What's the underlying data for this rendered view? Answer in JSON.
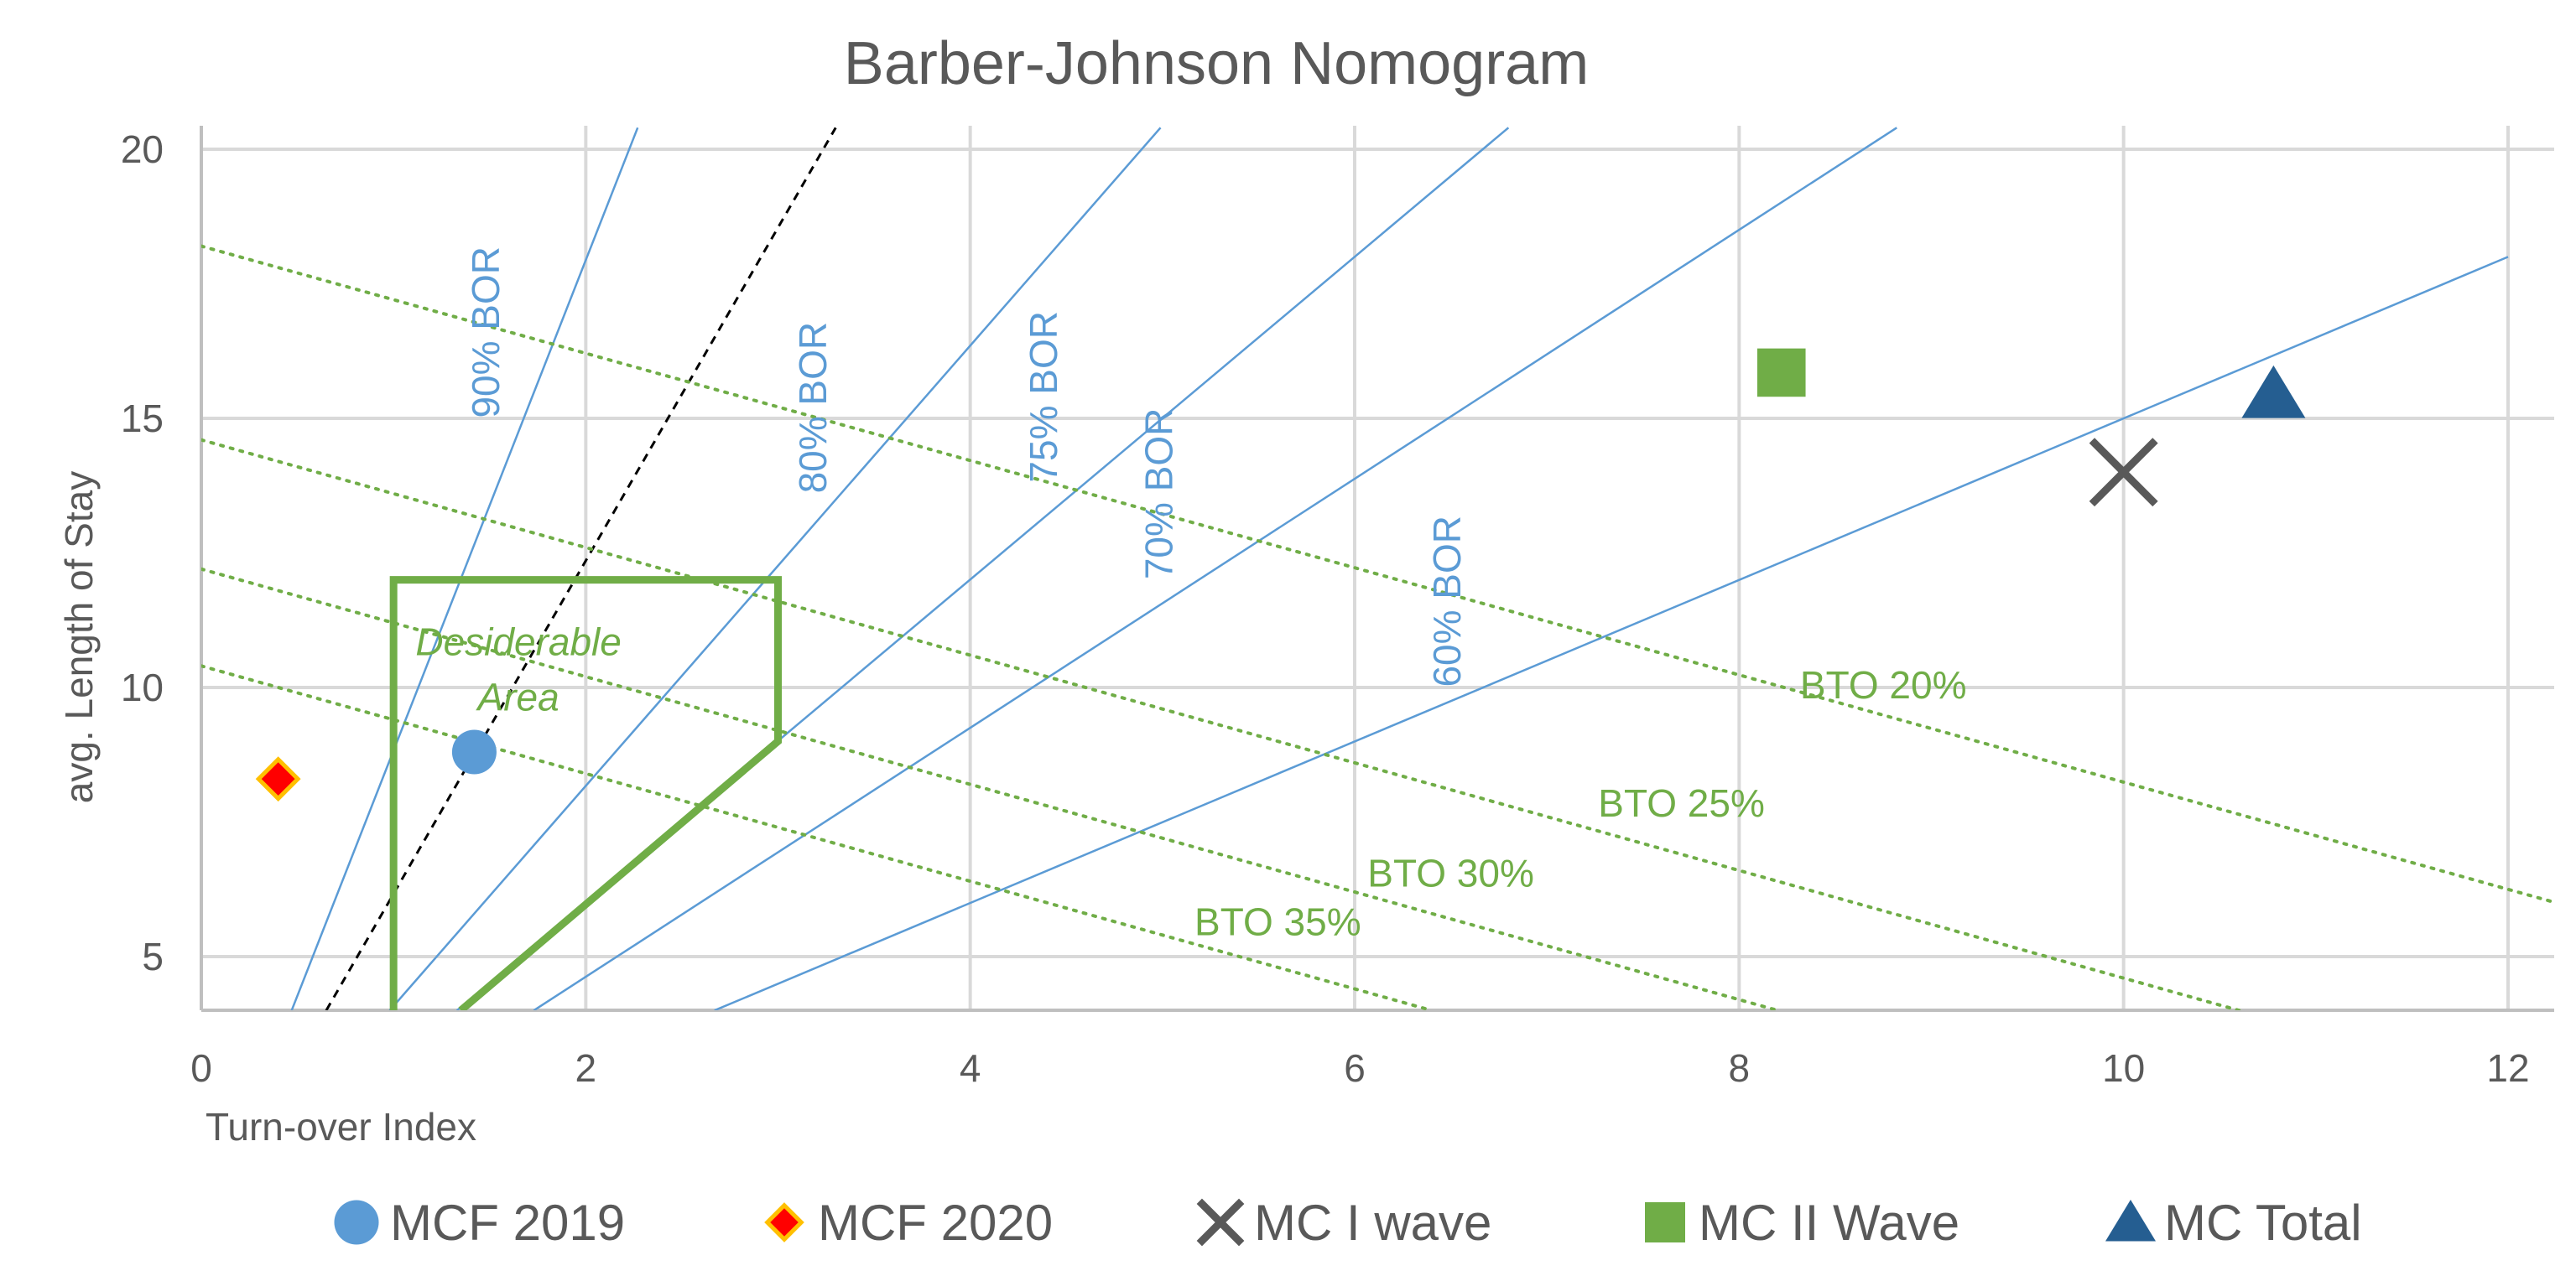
{
  "colors": {
    "grid": "#d9d9d9",
    "axis": "#bfbfbf",
    "text": "#595959",
    "bor_line": "#5b9bd5",
    "bor_label": "#5b9bd5",
    "bto_line": "#70ad47",
    "bto_label": "#70ad47",
    "area": "#70ad47",
    "ref_line": "#000000",
    "mcf2019": "#5b9bd5",
    "mcf2020_fill": "#ff0000",
    "mcf2020_edge": "#ffc000",
    "mc1": "#595959",
    "mc2": "#70ad47",
    "mctotal": "#255e91"
  },
  "chart_data": {
    "type": "scatter",
    "title": "Barber-Johnson Nomogram",
    "xlabel": "Turn-over Index",
    "ylabel": "avg. Length of Stay",
    "xlim": [
      0,
      12.25
    ],
    "ylim": [
      4,
      20.4
    ],
    "xticks": [
      0,
      2,
      4,
      6,
      8,
      10,
      12
    ],
    "yticks": [
      5,
      10,
      15,
      20
    ],
    "grid": true,
    "legend_position": "bottom",
    "series": [
      {
        "name": "MCF 2019",
        "marker": "circle",
        "points": [
          {
            "x": 1.42,
            "y": 8.8
          }
        ]
      },
      {
        "name": "MCF 2020",
        "marker": "diamond",
        "points": [
          {
            "x": 0.4,
            "y": 8.3
          }
        ]
      },
      {
        "name": "MC I wave",
        "marker": "x",
        "points": [
          {
            "x": 10.0,
            "y": 14.0
          }
        ]
      },
      {
        "name": "MC II Wave",
        "marker": "square",
        "points": [
          {
            "x": 8.22,
            "y": 15.85
          }
        ]
      },
      {
        "name": "MC Total",
        "marker": "triangle",
        "points": [
          {
            "x": 10.78,
            "y": 15.45
          }
        ]
      }
    ],
    "bor_lines": [
      {
        "label": "90% BOR",
        "from": [
          0.47,
          4
        ],
        "to": [
          2.27,
          20.4
        ],
        "label_at": [
          1.55,
          16.6
        ]
      },
      {
        "label": "80% BOR",
        "from": [
          0.98,
          4
        ],
        "to": [
          4.99,
          20.4
        ],
        "label_at": [
          3.25,
          15.2
        ]
      },
      {
        "label": "75% BOR",
        "from": [
          1.33,
          4
        ],
        "to": [
          6.8,
          20.4
        ],
        "label_at": [
          4.45,
          15.4
        ]
      },
      {
        "label": "70% BOR",
        "from": [
          1.73,
          4
        ],
        "to": [
          8.82,
          20.4
        ],
        "label_at": [
          5.05,
          13.6
        ]
      },
      {
        "label": "60% BOR",
        "from": [
          2.67,
          4
        ],
        "to": [
          12.0,
          18.0
        ],
        "label_at": [
          6.55,
          11.6
        ]
      }
    ],
    "reference_line": {
      "from": [
        0.65,
        4
      ],
      "to": [
        3.3,
        20.4
      ],
      "style": "dashed"
    },
    "bto_lines": [
      {
        "label": "BTO 20%",
        "from": [
          0.0,
          18.2
        ],
        "to": [
          12.25,
          6.0
        ],
        "label_at": [
          8.75,
          9.8
        ]
      },
      {
        "label": "BTO 25%",
        "from": [
          0.0,
          14.6
        ],
        "to": [
          10.6,
          4.0
        ],
        "label_at": [
          7.7,
          7.6
        ]
      },
      {
        "label": "BTO 30%",
        "from": [
          0.0,
          12.2
        ],
        "to": [
          8.2,
          4.0
        ],
        "label_at": [
          6.5,
          6.3
        ]
      },
      {
        "label": "BTO 35%",
        "from": [
          0.0,
          10.4
        ],
        "to": [
          6.4,
          4.0
        ],
        "label_at": [
          5.6,
          5.4
        ]
      }
    ],
    "desirable_area": {
      "label_lines": [
        "Desiderable",
        "Area"
      ],
      "polygon": [
        [
          1.0,
          4.0
        ],
        [
          1.0,
          12.0
        ],
        [
          3.0,
          12.0
        ],
        [
          3.0,
          9.0
        ],
        [
          1.35,
          4.0
        ]
      ],
      "label_at": [
        1.65,
        10.6
      ]
    }
  }
}
